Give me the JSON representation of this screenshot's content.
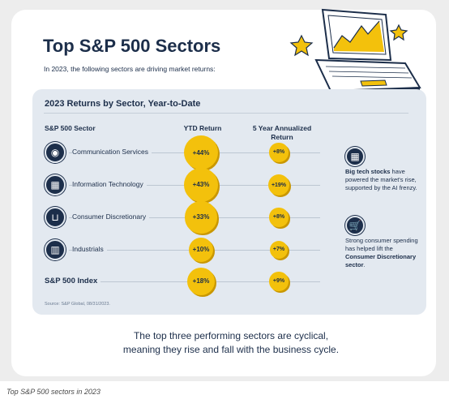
{
  "title": "Top S&P 500 Sectors",
  "subtitle": "In 2023, the following sectors are driving market returns:",
  "caption": "Top S&P 500 sectors in 2023",
  "takeaway_line1": "The top three performing sectors are cyclical,",
  "takeaway_line2": "meaning they rise and fall with the business cycle.",
  "colors": {
    "navy": "#1c2e4a",
    "gold": "#f3c10c",
    "panel": "#e3e9f0"
  },
  "notes": {
    "big_tech": {
      "icon": "chip-icon",
      "bold": "Big tech stocks",
      "rest": " have powered the market's rise, supported by the AI frenzy."
    },
    "consumer": {
      "icon": "cart-icon",
      "text": "Strong consumer spending has helped lift the ",
      "bold": "Consumer Discretionary sector",
      "end": "."
    }
  },
  "chart_data": {
    "type": "table",
    "title": "2023 Returns by Sector, Year-to-Date",
    "columns": [
      "S&P 500 Sector",
      "YTD Return",
      "5 Year Annualized Return"
    ],
    "source": "Source: S&P Global, 08/31/2023.",
    "rows": [
      {
        "sector": "Communication Services",
        "icon": "wifi-icon",
        "ytd": 44,
        "ytd_label": "+44%",
        "five_year": 8,
        "five_year_label": "+8%"
      },
      {
        "sector": "Information Technology",
        "icon": "chip-icon",
        "ytd": 43,
        "ytd_label": "+43%",
        "five_year": 19,
        "five_year_label": "+19%"
      },
      {
        "sector": "Consumer Discretionary",
        "icon": "cart-icon",
        "ytd": 33,
        "ytd_label": "+33%",
        "five_year": 8,
        "five_year_label": "+8%"
      },
      {
        "sector": "Industrials",
        "icon": "factory-icon",
        "ytd": 10,
        "ytd_label": "+10%",
        "five_year": 7,
        "five_year_label": "+7%"
      },
      {
        "sector": "S&P 500 Index",
        "icon": "",
        "ytd": 18,
        "ytd_label": "+18%",
        "five_year": 9,
        "five_year_label": "+9%"
      }
    ]
  }
}
